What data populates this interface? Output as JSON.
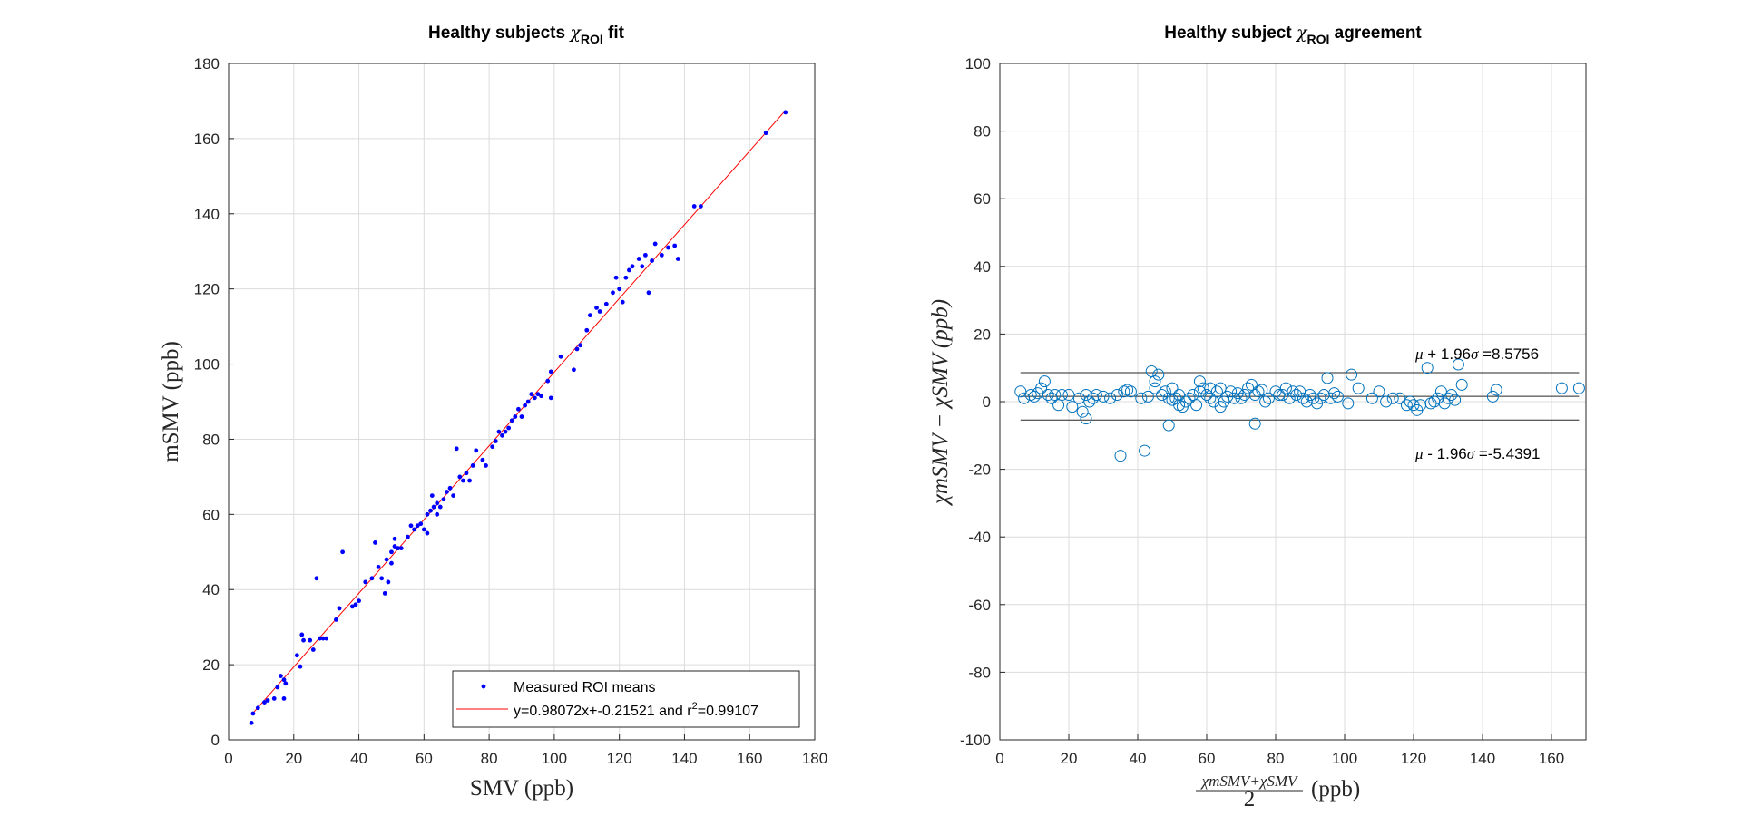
{
  "chart_data": [
    {
      "type": "scatter",
      "title_prefix": "Healthy subjects ",
      "title_symbol": "χ",
      "title_subscript": "ROI",
      "title_suffix": " fit",
      "xlabel": "SMV (ppb)",
      "ylabel": "mSMV (ppb)",
      "xlim": [
        0,
        180
      ],
      "ylim": [
        0,
        180
      ],
      "xticks": [
        "0",
        "20",
        "40",
        "60",
        "80",
        "100",
        "120",
        "140",
        "160",
        "180"
      ],
      "yticks": [
        "0",
        "20",
        "40",
        "60",
        "80",
        "100",
        "120",
        "140",
        "160",
        "180"
      ],
      "grid": true,
      "legend_position": "bottom-right",
      "series": [
        {
          "name": "Measured ROI means",
          "marker": "dot",
          "color": "#0000ff",
          "points": [
            [
              7,
              4.5
            ],
            [
              7.5,
              7
            ],
            [
              9,
              8.5
            ],
            [
              11,
              10
            ],
            [
              12,
              10.5
            ],
            [
              14,
              11
            ],
            [
              15,
              14
            ],
            [
              16,
              17
            ],
            [
              17,
              11
            ],
            [
              17,
              16
            ],
            [
              17.5,
              15
            ],
            [
              21,
              22.5
            ],
            [
              22,
              19.5
            ],
            [
              22.5,
              28
            ],
            [
              23,
              26.5
            ],
            [
              25,
              26.5
            ],
            [
              26,
              24
            ],
            [
              27,
              43
            ],
            [
              28,
              27
            ],
            [
              29,
              27
            ],
            [
              30,
              27
            ],
            [
              33,
              32
            ],
            [
              34,
              35
            ],
            [
              35,
              50
            ],
            [
              38,
              35.5
            ],
            [
              39,
              36
            ],
            [
              40,
              37
            ],
            [
              42,
              42
            ],
            [
              44,
              43
            ],
            [
              45,
              52.5
            ],
            [
              46,
              46
            ],
            [
              47,
              43
            ],
            [
              48,
              39
            ],
            [
              48.5,
              48
            ],
            [
              49,
              42
            ],
            [
              50,
              47
            ],
            [
              50,
              50
            ],
            [
              51,
              51.5
            ],
            [
              51,
              53.5
            ],
            [
              52,
              51
            ],
            [
              53,
              51
            ],
            [
              55,
              54
            ],
            [
              56,
              57
            ],
            [
              57,
              56
            ],
            [
              58,
              57
            ],
            [
              59,
              57.5
            ],
            [
              60,
              56
            ],
            [
              61,
              55
            ],
            [
              61,
              60
            ],
            [
              62,
              61
            ],
            [
              62.5,
              65
            ],
            [
              63,
              62
            ],
            [
              64,
              60
            ],
            [
              64,
              63
            ],
            [
              65,
              62
            ],
            [
              66,
              64
            ],
            [
              67,
              66
            ],
            [
              68,
              67
            ],
            [
              69,
              65
            ],
            [
              70,
              77.5
            ],
            [
              71,
              70
            ],
            [
              72,
              69
            ],
            [
              73,
              71
            ],
            [
              74,
              69
            ],
            [
              75,
              73
            ],
            [
              76,
              77
            ],
            [
              78,
              74.5
            ],
            [
              79,
              73
            ],
            [
              81,
              78
            ],
            [
              82,
              79.5
            ],
            [
              83,
              82
            ],
            [
              84,
              81
            ],
            [
              85,
              82
            ],
            [
              86,
              83
            ],
            [
              87,
              85
            ],
            [
              88,
              86
            ],
            [
              89,
              88
            ],
            [
              90,
              86
            ],
            [
              91,
              89
            ],
            [
              92,
              90
            ],
            [
              93,
              92
            ],
            [
              94,
              91
            ],
            [
              95,
              92
            ],
            [
              96,
              91.5
            ],
            [
              98,
              95.5
            ],
            [
              99,
              98
            ],
            [
              99,
              91
            ],
            [
              102,
              102
            ],
            [
              106,
              98.5
            ],
            [
              107,
              104
            ],
            [
              108,
              105
            ],
            [
              110,
              109
            ],
            [
              111,
              113
            ],
            [
              113,
              115
            ],
            [
              114,
              114
            ],
            [
              116,
              116
            ],
            [
              118,
              119
            ],
            [
              119,
              123
            ],
            [
              120,
              120
            ],
            [
              121,
              116.5
            ],
            [
              122,
              123
            ],
            [
              123,
              125
            ],
            [
              124,
              126
            ],
            [
              126,
              128
            ],
            [
              127,
              126
            ],
            [
              128,
              129
            ],
            [
              129,
              119
            ],
            [
              130,
              127.5
            ],
            [
              131,
              132
            ],
            [
              133,
              129
            ],
            [
              135,
              131
            ],
            [
              137,
              131.5
            ],
            [
              138,
              128
            ],
            [
              143,
              142
            ],
            [
              145,
              142
            ],
            [
              165,
              161.5
            ],
            [
              171,
              167
            ]
          ]
        }
      ],
      "fit": {
        "name": "y=0.98072x+-0.21521 and r^2=0.99107",
        "slope": 0.98072,
        "intercept": -0.21521,
        "r_squared": 0.99107,
        "x_range": [
          7,
          171
        ],
        "color": "#ff0000"
      },
      "legend_entries": [
        "Measured ROI means",
        "y=0.98072x+-0.21521 and r",
        "2",
        "=0.99107"
      ]
    },
    {
      "type": "scatter",
      "title_prefix": "Healthy subject ",
      "title_symbol": "χ",
      "title_subscript": "ROI",
      "title_suffix": " agreement",
      "xlabel_numerator": "χmSMV+χSMV",
      "xlabel_denominator": "2",
      "xlabel_unit": "(ppb)",
      "ylabel": "χmSMV − χSMV (ppb)",
      "xlim": [
        0,
        170
      ],
      "ylim": [
        -100,
        100
      ],
      "xticks": [
        "0",
        "20",
        "40",
        "60",
        "80",
        "100",
        "120",
        "140",
        "160"
      ],
      "yticks": [
        "100",
        "80",
        "60",
        "40",
        "20",
        "0",
        "-20",
        "-40",
        "-60",
        "-80",
        "-100"
      ],
      "grid": true,
      "reference_lines": [
        {
          "label": "μ + 1.96σ =8.5756",
          "y": 8.5756
        },
        {
          "label": "μ",
          "y": 1.5683
        },
        {
          "label": "μ - 1.96σ =-5.4391",
          "y": -5.4391
        }
      ],
      "annotations": [
        {
          "symbol": "μ",
          "text1": " + 1.96",
          "symbol2": "σ",
          "text2": " =8.5756"
        },
        {
          "symbol": "μ",
          "text1": " - 1.96",
          "symbol2": "σ",
          "text2": " =-5.4391"
        }
      ],
      "series": [
        {
          "marker": "open-circle",
          "color": "#0072bd",
          "points": [
            [
              6,
              3
            ],
            [
              7,
              1
            ],
            [
              9,
              2
            ],
            [
              10,
              1.5
            ],
            [
              11,
              2.5
            ],
            [
              12,
              4
            ],
            [
              13,
              6
            ],
            [
              14,
              2
            ],
            [
              15,
              1
            ],
            [
              16,
              2
            ],
            [
              17,
              -1
            ],
            [
              18,
              2
            ],
            [
              20,
              2
            ],
            [
              21,
              -1.5
            ],
            [
              23,
              1
            ],
            [
              24,
              -3
            ],
            [
              25,
              -5
            ],
            [
              25,
              2
            ],
            [
              26,
              0
            ],
            [
              27,
              1
            ],
            [
              28,
              2
            ],
            [
              30,
              1.5
            ],
            [
              32,
              1
            ],
            [
              34,
              2
            ],
            [
              35,
              -16
            ],
            [
              36,
              3
            ],
            [
              37,
              3.5
            ],
            [
              38,
              3
            ],
            [
              41,
              1
            ],
            [
              42,
              -14.5
            ],
            [
              43,
              1.5
            ],
            [
              44,
              9
            ],
            [
              45,
              4
            ],
            [
              45,
              6
            ],
            [
              46,
              8
            ],
            [
              47,
              2
            ],
            [
              48,
              3
            ],
            [
              49,
              1
            ],
            [
              49,
              -7
            ],
            [
              50,
              4
            ],
            [
              50,
              0.5
            ],
            [
              51,
              1
            ],
            [
              52,
              -1
            ],
            [
              52,
              2
            ],
            [
              53,
              -1.5
            ],
            [
              54,
              0
            ],
            [
              55,
              1
            ],
            [
              56,
              2
            ],
            [
              57,
              -1
            ],
            [
              58,
              3
            ],
            [
              58,
              6
            ],
            [
              59,
              4
            ],
            [
              60,
              2
            ],
            [
              61,
              1
            ],
            [
              61,
              4
            ],
            [
              62,
              0
            ],
            [
              63,
              3
            ],
            [
              64,
              -1.5
            ],
            [
              64,
              4
            ],
            [
              65,
              0
            ],
            [
              66,
              1.5
            ],
            [
              67,
              3
            ],
            [
              68,
              1
            ],
            [
              69,
              2.5
            ],
            [
              70,
              1
            ],
            [
              71,
              2
            ],
            [
              72,
              4
            ],
            [
              73,
              5
            ],
            [
              74,
              2
            ],
            [
              74,
              -6.5
            ],
            [
              75,
              3
            ],
            [
              76,
              3.5
            ],
            [
              77,
              0
            ],
            [
              78,
              1
            ],
            [
              80,
              3
            ],
            [
              81,
              2
            ],
            [
              82,
              2
            ],
            [
              83,
              4
            ],
            [
              84,
              1
            ],
            [
              85,
              3
            ],
            [
              86,
              2
            ],
            [
              87,
              3
            ],
            [
              88,
              1
            ],
            [
              89,
              0
            ],
            [
              90,
              2
            ],
            [
              91,
              1
            ],
            [
              92,
              -0.5
            ],
            [
              93,
              1
            ],
            [
              94,
              2
            ],
            [
              95,
              7
            ],
            [
              96,
              1
            ],
            [
              97,
              2.5
            ],
            [
              98,
              1.5
            ],
            [
              101,
              -0.5
            ],
            [
              102,
              8
            ],
            [
              104,
              4
            ],
            [
              108,
              1
            ],
            [
              110,
              3
            ],
            [
              112,
              0
            ],
            [
              114,
              1
            ],
            [
              116,
              1
            ],
            [
              118,
              -1
            ],
            [
              119,
              0
            ],
            [
              120,
              -1
            ],
            [
              121,
              -2.5
            ],
            [
              122,
              -1
            ],
            [
              124,
              10
            ],
            [
              125,
              -0.5
            ],
            [
              126,
              0
            ],
            [
              127,
              1
            ],
            [
              128,
              3
            ],
            [
              129,
              -0.5
            ],
            [
              130,
              1
            ],
            [
              131,
              2
            ],
            [
              132,
              0.5
            ],
            [
              133,
              11
            ],
            [
              134,
              5
            ],
            [
              143,
              1.5
            ],
            [
              144,
              3.5
            ],
            [
              163,
              4
            ],
            [
              168,
              4
            ]
          ]
        }
      ]
    }
  ]
}
